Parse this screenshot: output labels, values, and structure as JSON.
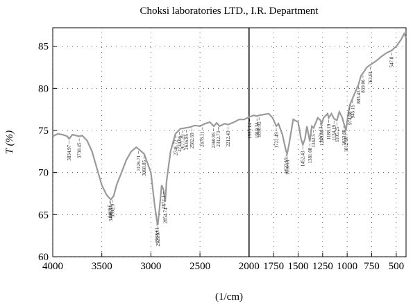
{
  "chart_data": {
    "type": "line",
    "title": "Choksi laboratories LTD., I.R. Department",
    "x_label": "(1/cm)",
    "y_label": "T (%)",
    "xlim": [
      4000,
      400
    ],
    "ylim": [
      60,
      87.2
    ],
    "xticks": [
      4000,
      3500,
      3000,
      2500,
      2000,
      1750,
      1500,
      1250,
      1000,
      750,
      500
    ],
    "yticks": [
      60,
      65,
      70,
      75,
      80,
      85
    ],
    "grid": true,
    "color": "#9a9a9a",
    "marker_x": 2000,
    "x": [
      4000,
      3950,
      3900,
      3850,
      3834,
      3800,
      3730,
      3700,
      3650,
      3600,
      3550,
      3500,
      3450,
      3408,
      3380,
      3350,
      3300,
      3250,
      3200,
      3150,
      3126,
      3068,
      3000,
      2960,
      2938,
      2929,
      2910,
      2890,
      2872,
      2854,
      2840,
      2800,
      2750,
      2700,
      2650,
      2600,
      2550,
      2500,
      2450,
      2400,
      2360,
      2330,
      2300,
      2250,
      2212,
      2150,
      2100,
      2050,
      2000,
      1950,
      1919,
      1898,
      1850,
      1800,
      1760,
      1722,
      1700,
      1660,
      1622,
      1610,
      1590,
      1550,
      1500,
      1470,
      1452,
      1430,
      1410,
      1381,
      1360,
      1342,
      1300,
      1271,
      1259,
      1240,
      1200,
      1188,
      1160,
      1134,
      1105,
      1080,
      1050,
      1033,
      1012,
      990,
      974,
      945,
      920,
      883,
      860,
      839,
      800,
      763,
      700,
      650,
      600,
      547,
      500,
      450,
      420,
      400
    ],
    "values": [
      74.3,
      74.6,
      74.5,
      74.3,
      74.0,
      74.5,
      74.3,
      74.4,
      73.8,
      72.5,
      70.5,
      68.5,
      67.3,
      66.8,
      67.2,
      68.5,
      70,
      71.5,
      72.5,
      73,
      72.8,
      72.2,
      70,
      66,
      64.2,
      63.8,
      66,
      68.5,
      68,
      66.5,
      69,
      72.5,
      74.6,
      75.2,
      75.3,
      75.4,
      75.6,
      75.5,
      75.8,
      76.0,
      75.5,
      75.9,
      75.5,
      75.8,
      75.7,
      76.0,
      76.3,
      76.3,
      76.6,
      76.8,
      76.7,
      76.8,
      76.9,
      77,
      76.5,
      75.5,
      75.8,
      74.5,
      72.5,
      72.3,
      73.5,
      76.3,
      76,
      74,
      73.3,
      74,
      75.5,
      73.7,
      75.5,
      75.3,
      76.5,
      76.2,
      75.8,
      76.5,
      77,
      76.5,
      77,
      76.4,
      76.2,
      77.2,
      76.5,
      75.8,
      75.0,
      77,
      78,
      78.8,
      79.5,
      80.5,
      81.5,
      81.8,
      82.5,
      82.8,
      83.3,
      83.8,
      84.2,
      84.5,
      85,
      85.8,
      86.5,
      86
    ],
    "peak_labels": [
      3834.97,
      3730.45,
      3419.5,
      3408.33,
      3392.9,
      3126.71,
      3068.85,
      2938.61,
      2929.97,
      2872.1,
      2854.74,
      2746.72,
      2710.06,
      2677.29,
      2636.85,
      2582.69,
      2478.11,
      2360.95,
      2312.73,
      2212.43,
      1993.14,
      1919.34,
      1898.02,
      1722.49,
      1622.19,
      1610.61,
      1452.43,
      1381.08,
      1342.5,
      1271.13,
      1259.56,
      1188.19,
      1134.19,
      1105.25,
      1033.88,
      1012.66,
      974.08,
      945.15,
      883.43,
      839.06,
      763.81,
      547.8
    ]
  }
}
